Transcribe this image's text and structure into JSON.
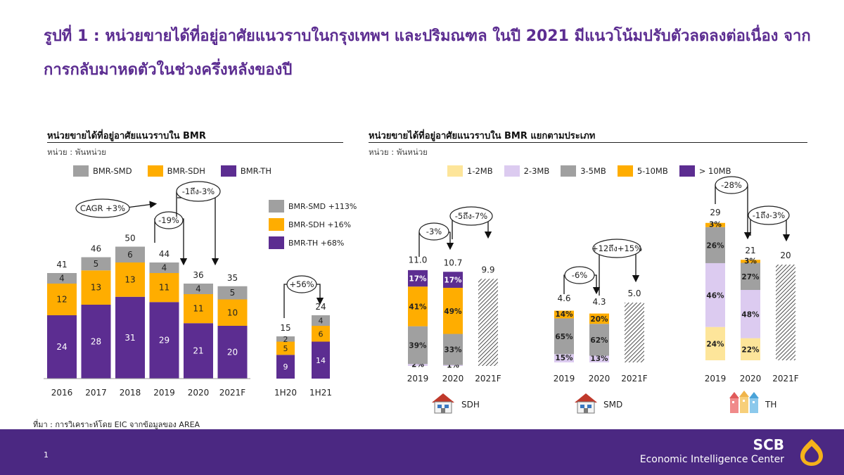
{
  "title": "รูปที่ 1 : หน่วยขายได้ที่อยู่อาศัยแนวราบในกรุงเทพฯ และปริมณฑล ในปี 2021 มีแนวโน้มปรับตัวลดลงต่อเนื่อง จากการกลับมาหดตัวในช่วงครึ่งหลังของปี",
  "source": "ที่มา : การวิเคราะห์โดย EIC จากข้อมูลของ AREA",
  "page_number": "1",
  "brand": {
    "name": "SCB",
    "subtitle": "Economic Intelligence Center"
  },
  "colors": {
    "smd": "#a0a0a0",
    "sdh": "#ffad00",
    "th": "#5c2d91",
    "mb1_2": "#fde59a",
    "mb2_3": "#dccbf0",
    "mb3_5": "#a0a0a0",
    "mb5_10": "#ffad00",
    "mb10p": "#5c2d91",
    "footer": "#4b2882",
    "title": "#5c2d91"
  },
  "left_panel": {
    "title": "หน่วยขายได้ที่อยู่อาศัยแนวราบใน BMR",
    "unit": "หน่วย : พันหน่วย",
    "legend": [
      "BMR-SMD",
      "BMR-SDH",
      "BMR-TH"
    ],
    "cagr_label": "CAGR +3%",
    "change_2019": "-19%",
    "change_2021": "-1ถึง-3%",
    "change_1h": "+56%",
    "side_legend": [
      "BMR-SMD +113%",
      "BMR-SDH +16%",
      "BMR-TH +68%"
    ]
  },
  "right_panel": {
    "title": "หน่วยขายได้ที่อยู่อาศัยแนวราบใน BMR แยกตามประเภท",
    "unit": "หน่วย : พันหน่วย",
    "legend": [
      "1-2MB",
      "2-3MB",
      "3-5MB",
      "5-10MB",
      "> 10MB"
    ],
    "groups": [
      {
        "name": "SDH",
        "change_a": "-3%",
        "change_b": "-5ถึง-7%"
      },
      {
        "name": "SMD",
        "change_a": "-6%",
        "change_b": "+12ถึง+15%"
      },
      {
        "name": "TH",
        "change_a": "-28%",
        "change_b": "-1ถึง-3%"
      }
    ]
  },
  "chart_data": [
    {
      "type": "bar",
      "stacked": true,
      "categories": [
        "2016",
        "2017",
        "2018",
        "2019",
        "2020",
        "2021F"
      ],
      "totals": [
        41,
        46,
        50,
        44,
        36,
        35
      ],
      "series": [
        {
          "name": "BMR-TH",
          "values": [
            24,
            28,
            31,
            29,
            21,
            20
          ]
        },
        {
          "name": "BMR-SDH",
          "values": [
            12,
            13,
            13,
            11,
            11,
            10
          ]
        },
        {
          "name": "BMR-SMD",
          "values": [
            4,
            5,
            6,
            4,
            4,
            5
          ]
        }
      ],
      "forecast_category": "2021F"
    },
    {
      "type": "bar",
      "stacked": true,
      "categories": [
        "1H20",
        "1H21"
      ],
      "totals": [
        15,
        24
      ],
      "series": [
        {
          "name": "BMR-TH",
          "values": [
            9,
            14
          ]
        },
        {
          "name": "BMR-SDH",
          "values": [
            5,
            6
          ]
        },
        {
          "name": "BMR-SMD",
          "values": [
            2,
            4
          ]
        }
      ]
    },
    {
      "type": "bar",
      "stacked": true,
      "group": "SDH",
      "categories": [
        "2019",
        "2020",
        "2021F"
      ],
      "totals": [
        11.0,
        10.7,
        9.9
      ],
      "series_percent": [
        {
          "name": "2-3MB",
          "values": [
            2,
            1,
            null
          ]
        },
        {
          "name": "3-5MB",
          "values": [
            39,
            33,
            null
          ]
        },
        {
          "name": "5-10MB",
          "values": [
            41,
            49,
            null
          ]
        },
        {
          "name": "> 10MB",
          "values": [
            17,
            17,
            null
          ]
        }
      ],
      "total_labels": [
        "11.0",
        "10.7",
        "9.9"
      ]
    },
    {
      "type": "bar",
      "stacked": true,
      "group": "SMD",
      "categories": [
        "2019",
        "2020",
        "2021F"
      ],
      "totals": [
        4.6,
        4.3,
        5.0
      ],
      "series_percent": [
        {
          "name": "2-3MB",
          "values": [
            15,
            13,
            null
          ]
        },
        {
          "name": "3-5MB",
          "values": [
            65,
            62,
            null
          ]
        },
        {
          "name": "5-10MB",
          "values": [
            14,
            20,
            null
          ]
        }
      ],
      "total_labels": [
        "4.6",
        "4.3",
        "5.0"
      ]
    },
    {
      "type": "bar",
      "stacked": true,
      "group": "TH",
      "categories": [
        "2019",
        "2020",
        "2021F"
      ],
      "totals": [
        29,
        21,
        20
      ],
      "series_percent": [
        {
          "name": "1-2MB",
          "values": [
            24,
            22,
            null
          ]
        },
        {
          "name": "2-3MB",
          "values": [
            46,
            48,
            null
          ]
        },
        {
          "name": "3-5MB",
          "values": [
            26,
            27,
            null
          ]
        },
        {
          "name": "5-10MB",
          "values": [
            3,
            3,
            null
          ]
        }
      ],
      "total_labels": [
        "29",
        "21",
        "20"
      ]
    }
  ]
}
